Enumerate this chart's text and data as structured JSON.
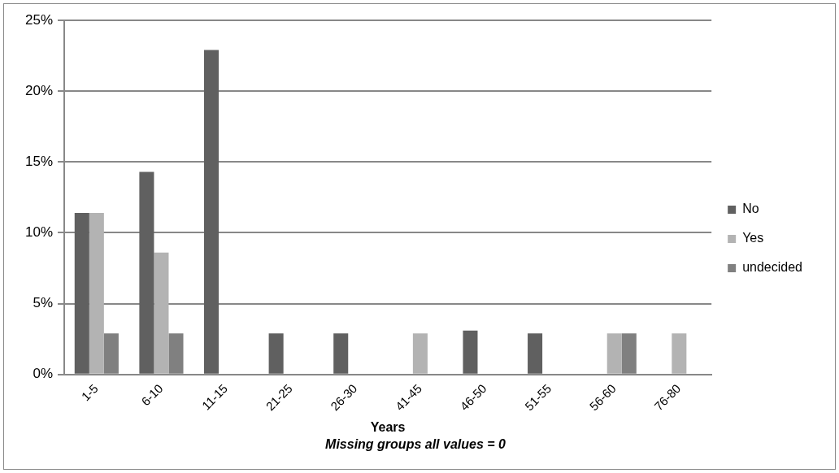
{
  "chart_data": {
    "type": "bar",
    "categories": [
      "1-5",
      "6-10",
      "11-15",
      "21-25",
      "26-30",
      "41-45",
      "46-50",
      "51-55",
      "56-60",
      "76-80"
    ],
    "series": [
      {
        "name": "No",
        "color": "#606060",
        "values": [
          11.4,
          14.3,
          22.9,
          2.9,
          2.9,
          0,
          3.1,
          2.9,
          0,
          0
        ]
      },
      {
        "name": "Yes",
        "color": "#b3b3b3",
        "values": [
          11.4,
          8.6,
          0,
          0,
          0,
          2.9,
          0,
          0,
          2.9,
          2.9
        ]
      },
      {
        "name": "undecided",
        "color": "#808080",
        "values": [
          2.9,
          2.9,
          0,
          0,
          0,
          0,
          0,
          0,
          2.9,
          0
        ]
      }
    ],
    "xlabel": "Years",
    "annotations": [
      "Missing groups all values = 0"
    ],
    "ylim": [
      0,
      25
    ],
    "yticks": [
      {
        "value": 0,
        "label": "0%"
      },
      {
        "value": 5,
        "label": "5%"
      },
      {
        "value": 10,
        "label": "10%"
      },
      {
        "value": 15,
        "label": "15%"
      },
      {
        "value": 20,
        "label": "20%"
      },
      {
        "value": 25,
        "label": "25%"
      }
    ],
    "grid": "y",
    "legend": "right"
  }
}
